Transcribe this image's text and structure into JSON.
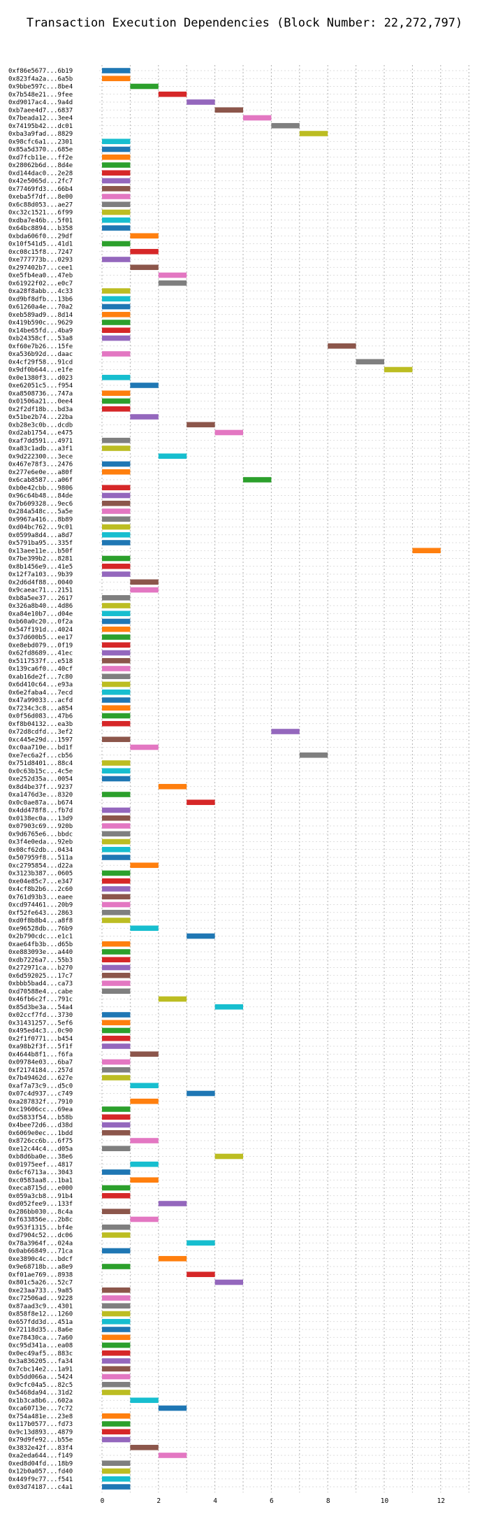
{
  "chart_data": {
    "type": "bar",
    "orientation": "horizontal",
    "title": "Transaction Execution Dependencies (Block Number: 22,272,797)",
    "xlabel": "",
    "ylabel": "",
    "xlim": [
      0,
      13
    ],
    "x_ticks": [
      0,
      2,
      4,
      6,
      8,
      10,
      12
    ],
    "grid": "on (dotted, both axes)",
    "legend": "none",
    "palette": [
      "#1f77b4",
      "#ff7f0e",
      "#2ca02c",
      "#d62728",
      "#9467bd",
      "#8c564b",
      "#e377c2",
      "#7f7f7f",
      "#bcbd22",
      "#17becf"
    ],
    "transactions": [
      {
        "label": "0xf86e5677...6b19",
        "start": 0,
        "c": 0
      },
      {
        "label": "0x823f4a2a...6a5b",
        "start": 0,
        "c": 1
      },
      {
        "label": "0x9bbe597c...8be4",
        "start": 1,
        "c": 2
      },
      {
        "label": "0x7b548e21...9fee",
        "start": 2,
        "c": 3
      },
      {
        "label": "0xd9017ac4...9a4d",
        "start": 3,
        "c": 4
      },
      {
        "label": "0xb7aee4d7...6837",
        "start": 4,
        "c": 5
      },
      {
        "label": "0x7beada12...3ee4",
        "start": 5,
        "c": 6
      },
      {
        "label": "0x74195b42...dc01",
        "start": 6,
        "c": 7
      },
      {
        "label": "0xba3a9fad...8829",
        "start": 7,
        "c": 8
      },
      {
        "label": "0x98cfc6a1...2301",
        "start": 0,
        "c": 9
      },
      {
        "label": "0x85a5d370...685e",
        "start": 0,
        "c": 0
      },
      {
        "label": "0xd7fcb11e...ff2e",
        "start": 0,
        "c": 1
      },
      {
        "label": "0x28062b6d...8d4e",
        "start": 0,
        "c": 2
      },
      {
        "label": "0xd144dac0...2e28",
        "start": 0,
        "c": 3
      },
      {
        "label": "0x42e5065d...2fc7",
        "start": 0,
        "c": 4
      },
      {
        "label": "0x77469fd3...66b4",
        "start": 0,
        "c": 5
      },
      {
        "label": "0xeba5f7df...8e00",
        "start": 0,
        "c": 6
      },
      {
        "label": "0x6c88d053...ae27",
        "start": 0,
        "c": 7
      },
      {
        "label": "0xc32c1521...6f99",
        "start": 0,
        "c": 8
      },
      {
        "label": "0xdba7e46b...5f01",
        "start": 0,
        "c": 9
      },
      {
        "label": "0x64bc8894...b358",
        "start": 0,
        "c": 0
      },
      {
        "label": "0xbda606f0...29df",
        "start": 1,
        "c": 1
      },
      {
        "label": "0x10f541d5...41d1",
        "start": 0,
        "c": 2
      },
      {
        "label": "0xc08c15f8...7247",
        "start": 1,
        "c": 3
      },
      {
        "label": "0xe777773b...0293",
        "start": 0,
        "c": 4
      },
      {
        "label": "0x297402b7...cee1",
        "start": 1,
        "c": 5
      },
      {
        "label": "0xe5fb4ea0...47eb",
        "start": 2,
        "c": 6
      },
      {
        "label": "0x61922f02...e0c7",
        "start": 2,
        "c": 7
      },
      {
        "label": "0xa28f8abb...4c33",
        "start": 0,
        "c": 8
      },
      {
        "label": "0xd9bf8dfb...13b6",
        "start": 0,
        "c": 9
      },
      {
        "label": "0x61260a4e...70a2",
        "start": 0,
        "c": 0
      },
      {
        "label": "0xeb589ad9...8d14",
        "start": 0,
        "c": 1
      },
      {
        "label": "0x419b590c...9629",
        "start": 0,
        "c": 2
      },
      {
        "label": "0x14be65fd...4ba9",
        "start": 0,
        "c": 3
      },
      {
        "label": "0xb24358cf...53a8",
        "start": 0,
        "c": 4
      },
      {
        "label": "0xf60e7b26...15fe",
        "start": 8,
        "c": 5
      },
      {
        "label": "0xa536b92d...daac",
        "start": 0,
        "c": 6
      },
      {
        "label": "0x4cf29f58...91cd",
        "start": 9,
        "c": 7
      },
      {
        "label": "0x9df0b644...e1fe",
        "start": 10,
        "c": 8
      },
      {
        "label": "0x0e1380f3...d023",
        "start": 0,
        "c": 9
      },
      {
        "label": "0xe62051c5...f954",
        "start": 1,
        "c": 0
      },
      {
        "label": "0xa8508736...747a",
        "start": 0,
        "c": 1
      },
      {
        "label": "0x01506a21...0ee4",
        "start": 0,
        "c": 2
      },
      {
        "label": "0x2f2df18b...bd3a",
        "start": 0,
        "c": 3
      },
      {
        "label": "0x51be2b74...22ba",
        "start": 1,
        "c": 4
      },
      {
        "label": "0xb28e3c0b...dcdb",
        "start": 3,
        "c": 5
      },
      {
        "label": "0xd2ab1754...e475",
        "start": 4,
        "c": 6
      },
      {
        "label": "0xaf7dd591...4971",
        "start": 0,
        "c": 7
      },
      {
        "label": "0xa83c1adb...a3f1",
        "start": 0,
        "c": 8
      },
      {
        "label": "0x9d222300...3ece",
        "start": 2,
        "c": 9
      },
      {
        "label": "0x467e78f3...2476",
        "start": 0,
        "c": 0
      },
      {
        "label": "0x277e6e0e...a80f",
        "start": 0,
        "c": 1
      },
      {
        "label": "0x6cab8587...a06f",
        "start": 5,
        "c": 2
      },
      {
        "label": "0xb0e42cbb...9806",
        "start": 0,
        "c": 3
      },
      {
        "label": "0x96c64b48...84de",
        "start": 0,
        "c": 4
      },
      {
        "label": "0x7b609328...9ec6",
        "start": 0,
        "c": 5
      },
      {
        "label": "0x284a548c...5a5e",
        "start": 0,
        "c": 6
      },
      {
        "label": "0x9967a416...8b89",
        "start": 0,
        "c": 7
      },
      {
        "label": "0xd04bc762...9c01",
        "start": 0,
        "c": 8
      },
      {
        "label": "0x0599a8d4...a8d7",
        "start": 0,
        "c": 9
      },
      {
        "label": "0x5791ba95...335f",
        "start": 0,
        "c": 0
      },
      {
        "label": "0x13aee11e...b50f",
        "start": 11,
        "c": 1
      },
      {
        "label": "0x7be399b2...8281",
        "start": 0,
        "c": 2
      },
      {
        "label": "0x8b1456e9...41e5",
        "start": 0,
        "c": 3
      },
      {
        "label": "0x12f7a103...9b39",
        "start": 0,
        "c": 4
      },
      {
        "label": "0x2d6d4f88...0040",
        "start": 1,
        "c": 5
      },
      {
        "label": "0x9caeac71...2151",
        "start": 1,
        "c": 6
      },
      {
        "label": "0xb8a5ee37...2617",
        "start": 0,
        "c": 7
      },
      {
        "label": "0x326a8b40...4d86",
        "start": 0,
        "c": 8
      },
      {
        "label": "0xa84e10b7...d04e",
        "start": 0,
        "c": 9
      },
      {
        "label": "0xb60a0c20...0f2a",
        "start": 0,
        "c": 0
      },
      {
        "label": "0x547f191d...4024",
        "start": 0,
        "c": 1
      },
      {
        "label": "0x37d600b5...ee17",
        "start": 0,
        "c": 2
      },
      {
        "label": "0xe8ebd079...0f19",
        "start": 0,
        "c": 3
      },
      {
        "label": "0x62fd8689...41ec",
        "start": 0,
        "c": 4
      },
      {
        "label": "0x5117537f...e518",
        "start": 0,
        "c": 5
      },
      {
        "label": "0x139ca6f0...40cf",
        "start": 0,
        "c": 6
      },
      {
        "label": "0xab16de2f...7c80",
        "start": 0,
        "c": 7
      },
      {
        "label": "0x6d410c64...e93a",
        "start": 0,
        "c": 8
      },
      {
        "label": "0x6e2faba4...7ecd",
        "start": 0,
        "c": 9
      },
      {
        "label": "0x47a99033...acfd",
        "start": 0,
        "c": 0
      },
      {
        "label": "0x7234c3c8...a854",
        "start": 0,
        "c": 1
      },
      {
        "label": "0x0f56d083...47b6",
        "start": 0,
        "c": 2
      },
      {
        "label": "0xf8b04132...ea3b",
        "start": 0,
        "c": 3
      },
      {
        "label": "0x72d8cdfd...3ef2",
        "start": 6,
        "c": 4
      },
      {
        "label": "0xc445e29d...1597",
        "start": 0,
        "c": 5
      },
      {
        "label": "0xc0aa710e...bd1f",
        "start": 1,
        "c": 6
      },
      {
        "label": "0xe7ec6a2f...cb56",
        "start": 7,
        "c": 7
      },
      {
        "label": "0x751d8401...88c4",
        "start": 0,
        "c": 8
      },
      {
        "label": "0x0c63b15c...4c5e",
        "start": 0,
        "c": 9
      },
      {
        "label": "0xe252d35a...0054",
        "start": 0,
        "c": 0
      },
      {
        "label": "0x8d4be37f...9237",
        "start": 2,
        "c": 1
      },
      {
        "label": "0xa1476d3e...8320",
        "start": 0,
        "c": 2
      },
      {
        "label": "0x0c0ae87a...b674",
        "start": 3,
        "c": 3
      },
      {
        "label": "0x4dd478f8...fb7d",
        "start": 0,
        "c": 4
      },
      {
        "label": "0x0138ec0a...13d9",
        "start": 0,
        "c": 5
      },
      {
        "label": "0x07903c69...920b",
        "start": 0,
        "c": 6
      },
      {
        "label": "0x9d6765e6...bbdc",
        "start": 0,
        "c": 7
      },
      {
        "label": "0x3f4e0eda...92eb",
        "start": 0,
        "c": 8
      },
      {
        "label": "0x08cf62db...0434",
        "start": 0,
        "c": 9
      },
      {
        "label": "0x507959f8...511a",
        "start": 0,
        "c": 0
      },
      {
        "label": "0xc2795854...d22a",
        "start": 1,
        "c": 1
      },
      {
        "label": "0x3123b387...0605",
        "start": 0,
        "c": 2
      },
      {
        "label": "0xe04e85c7...e347",
        "start": 0,
        "c": 3
      },
      {
        "label": "0x4cf8b2b6...2c60",
        "start": 0,
        "c": 4
      },
      {
        "label": "0x761d93b3...eaee",
        "start": 0,
        "c": 5
      },
      {
        "label": "0xcd974461...20b9",
        "start": 0,
        "c": 6
      },
      {
        "label": "0xf52fe643...2863",
        "start": 0,
        "c": 7
      },
      {
        "label": "0xd0f8b8b4...a8f8",
        "start": 0,
        "c": 8
      },
      {
        "label": "0xe96528db...76b9",
        "start": 1,
        "c": 9
      },
      {
        "label": "0x2b790cdc...e1c1",
        "start": 3,
        "c": 0
      },
      {
        "label": "0xae64fb3b...d65b",
        "start": 0,
        "c": 1
      },
      {
        "label": "0xe883093e...a440",
        "start": 0,
        "c": 2
      },
      {
        "label": "0xdb7226a7...55b3",
        "start": 0,
        "c": 3
      },
      {
        "label": "0x272971ca...b270",
        "start": 0,
        "c": 4
      },
      {
        "label": "0x6d592025...17c7",
        "start": 0,
        "c": 5
      },
      {
        "label": "0xbbb5bad4...ca73",
        "start": 0,
        "c": 6
      },
      {
        "label": "0xd70588e4...cabe",
        "start": 0,
        "c": 7
      },
      {
        "label": "0x46fb6c2f...791c",
        "start": 2,
        "c": 8
      },
      {
        "label": "0x85d3be3a...54a4",
        "start": 4,
        "c": 9
      },
      {
        "label": "0x02ccf7fd...3730",
        "start": 0,
        "c": 0
      },
      {
        "label": "0x31431257...5ef6",
        "start": 0,
        "c": 1
      },
      {
        "label": "0x495ed4c3...0c90",
        "start": 0,
        "c": 2
      },
      {
        "label": "0x2f1f0771...b454",
        "start": 0,
        "c": 3
      },
      {
        "label": "0xa98b2f3f...5f1f",
        "start": 0,
        "c": 4
      },
      {
        "label": "0x4644b8f1...f6fa",
        "start": 1,
        "c": 5
      },
      {
        "label": "0x09784e03...6ba7",
        "start": 0,
        "c": 6
      },
      {
        "label": "0xf2174184...257d",
        "start": 0,
        "c": 7
      },
      {
        "label": "0x7b49462d...627e",
        "start": 0,
        "c": 8
      },
      {
        "label": "0xaf7a73c9...d5c0",
        "start": 1,
        "c": 9
      },
      {
        "label": "0x07c4d937...c749",
        "start": 3,
        "c": 0
      },
      {
        "label": "0xa287832f...7910",
        "start": 1,
        "c": 1
      },
      {
        "label": "0xc19606cc...69ea",
        "start": 0,
        "c": 2
      },
      {
        "label": "0xd5833f54...b58b",
        "start": 0,
        "c": 3
      },
      {
        "label": "0x4bee72d6...d38d",
        "start": 0,
        "c": 4
      },
      {
        "label": "0x6069e0ec...1bdd",
        "start": 0,
        "c": 5
      },
      {
        "label": "0x8726cc6b...6f75",
        "start": 1,
        "c": 6
      },
      {
        "label": "0xe12c44c4...d05a",
        "start": 0,
        "c": 7
      },
      {
        "label": "0xb8d6ba0e...38e6",
        "start": 4,
        "c": 8
      },
      {
        "label": "0x01975eef...4817",
        "start": 1,
        "c": 9
      },
      {
        "label": "0x6cf6713a...3043",
        "start": 0,
        "c": 0
      },
      {
        "label": "0xc0583aa8...1ba1",
        "start": 1,
        "c": 1
      },
      {
        "label": "0xeca8715d...e000",
        "start": 0,
        "c": 2
      },
      {
        "label": "0x059a3cb8...91b4",
        "start": 0,
        "c": 3
      },
      {
        "label": "0xd052fee9...133f",
        "start": 2,
        "c": 4
      },
      {
        "label": "0x286bb030...8c4a",
        "start": 0,
        "c": 5
      },
      {
        "label": "0xf633856e...2b8c",
        "start": 1,
        "c": 6
      },
      {
        "label": "0x953f1315...bf4e",
        "start": 0,
        "c": 7
      },
      {
        "label": "0xd7904c52...dc06",
        "start": 0,
        "c": 8
      },
      {
        "label": "0x78a3964f...024a",
        "start": 3,
        "c": 9
      },
      {
        "label": "0x0ab66849...71ca",
        "start": 0,
        "c": 0
      },
      {
        "label": "0xe3890c4c...bdcf",
        "start": 2,
        "c": 1
      },
      {
        "label": "0x9e68718b...a8e9",
        "start": 0,
        "c": 2
      },
      {
        "label": "0xf01ae769...8938",
        "start": 3,
        "c": 3
      },
      {
        "label": "0x801c5a26...52c7",
        "start": 4,
        "c": 4
      },
      {
        "label": "0xe23aa733...9a85",
        "start": 0,
        "c": 5
      },
      {
        "label": "0xc72506ad...9228",
        "start": 0,
        "c": 6
      },
      {
        "label": "0x87aad3c9...4301",
        "start": 0,
        "c": 7
      },
      {
        "label": "0x858f8e12...1260",
        "start": 0,
        "c": 8
      },
      {
        "label": "0x657fdd3d...451a",
        "start": 0,
        "c": 9
      },
      {
        "label": "0x72118d35...8a6e",
        "start": 0,
        "c": 0
      },
      {
        "label": "0xe78430ca...7a60",
        "start": 0,
        "c": 1
      },
      {
        "label": "0xc95d341a...ea08",
        "start": 0,
        "c": 2
      },
      {
        "label": "0x0ec49af5...883c",
        "start": 0,
        "c": 3
      },
      {
        "label": "0x3a836205...fa34",
        "start": 0,
        "c": 4
      },
      {
        "label": "0x7cbc14e2...1a91",
        "start": 0,
        "c": 5
      },
      {
        "label": "0xb5dd066a...5424",
        "start": 0,
        "c": 6
      },
      {
        "label": "0x9cfc04a5...82c5",
        "start": 0,
        "c": 7
      },
      {
        "label": "0x5468da94...31d2",
        "start": 0,
        "c": 8
      },
      {
        "label": "0x1b3ca8b6...602a",
        "start": 1,
        "c": 9
      },
      {
        "label": "0xca60713e...7c72",
        "start": 2,
        "c": 0
      },
      {
        "label": "0x754a481e...23e8",
        "start": 0,
        "c": 1
      },
      {
        "label": "0x117b0577...fd73",
        "start": 0,
        "c": 2
      },
      {
        "label": "0x9c13d893...4879",
        "start": 0,
        "c": 3
      },
      {
        "label": "0x79d9fe92...b55e",
        "start": 0,
        "c": 4
      },
      {
        "label": "0x3832e42f...83f4",
        "start": 1,
        "c": 5
      },
      {
        "label": "0xa2eda644...f149",
        "start": 2,
        "c": 6
      },
      {
        "label": "0xed8d04fd...18b9",
        "start": 0,
        "c": 7
      },
      {
        "label": "0x12b0a057...fd40",
        "start": 0,
        "c": 8
      },
      {
        "label": "0x449f9c77...f541",
        "start": 0,
        "c": 9
      },
      {
        "label": "0x03d74187...c4a1",
        "start": 0,
        "c": 0
      }
    ]
  }
}
